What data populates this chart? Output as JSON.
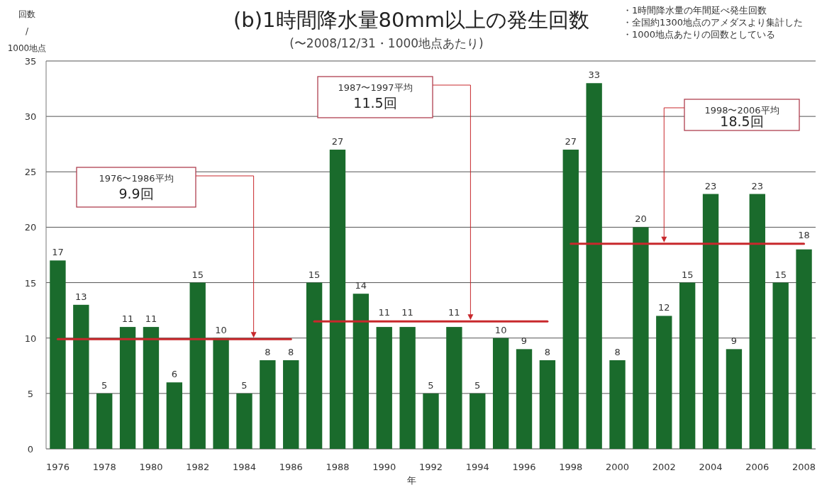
{
  "chart_data": {
    "type": "bar",
    "title": "(b)1時間降水量80mm以上の発生回数",
    "subtitle": "(〜2008/12/31・1000地点あたり)",
    "xlabel": "年",
    "ylabel": "回数\n/\n1000地点",
    "categories": [
      "1976",
      null,
      "1978",
      null,
      "1980",
      null,
      "1982",
      null,
      "1984",
      null,
      "1986",
      null,
      "1988",
      null,
      "1990",
      null,
      "1992",
      null,
      "1994",
      null,
      "1996",
      null,
      "1998",
      null,
      "2000",
      null,
      "2002",
      null,
      "2004",
      null,
      "2006",
      null,
      "2008"
    ],
    "series": [
      {
        "color": "#1a6b2c",
        "values": [
          17,
          13,
          5,
          11,
          11,
          6,
          15,
          10,
          5,
          8,
          8,
          15,
          27,
          14,
          11,
          11,
          5,
          11,
          5,
          10,
          9,
          8,
          27,
          33,
          8,
          20,
          12,
          15,
          23,
          9,
          23,
          15,
          18
        ],
        "value_labels": [
          "17",
          "13",
          "5",
          "11",
          "11",
          "6",
          "15",
          "10",
          "5",
          "8",
          "8",
          "15",
          "27",
          "14",
          "11",
          "11",
          "5",
          "11",
          "5",
          "10",
          "9",
          "8",
          "27",
          "33",
          "8",
          "20",
          "12",
          "15",
          "23",
          "9",
          "23",
          "15",
          "18"
        ]
      },
      {
        "type": "line",
        "color": "#c8282c",
        "values": [
          9.9,
          9.9,
          9.9,
          9.9,
          9.9,
          9.9,
          9.9,
          9.9,
          9.9,
          9.9,
          9.9,
          null,
          null,
          null,
          null,
          null,
          null,
          null,
          null,
          null,
          null,
          null,
          null,
          null,
          null,
          null,
          null,
          null,
          null,
          null,
          null,
          null,
          null
        ]
      },
      {
        "type": "line",
        "color": "#c8282c",
        "values": [
          null,
          null,
          null,
          null,
          null,
          null,
          null,
          null,
          null,
          null,
          null,
          11.5,
          11.5,
          11.5,
          11.5,
          11.5,
          11.5,
          11.5,
          11.5,
          11.5,
          11.5,
          11.5,
          null,
          null,
          null,
          null,
          null,
          null,
          null,
          null,
          null,
          null,
          null
        ]
      },
      {
        "type": "line",
        "color": "#c8282c",
        "values": [
          null,
          null,
          null,
          null,
          null,
          null,
          null,
          null,
          null,
          null,
          null,
          null,
          null,
          null,
          null,
          null,
          null,
          null,
          null,
          null,
          null,
          null,
          18.5,
          18.5,
          18.5,
          18.5,
          18.5,
          18.5,
          18.5,
          18.5,
          18.5,
          18.5,
          18.5
        ]
      }
    ],
    "ylim": [
      0,
      35
    ],
    "yticks": [
      0,
      5,
      10,
      15,
      20,
      25,
      30,
      35
    ],
    "grid": "y",
    "annotations": [
      "・1時間降水量の年間延べ発生回数",
      "・全国約1300地点のアメダスより集計した",
      "・1000地点あたりの回数としている",
      "1976〜1986平均\n9.9回",
      "1987〜1997平均\n11.5回",
      "1998〜2006平均\n18.5回"
    ]
  }
}
